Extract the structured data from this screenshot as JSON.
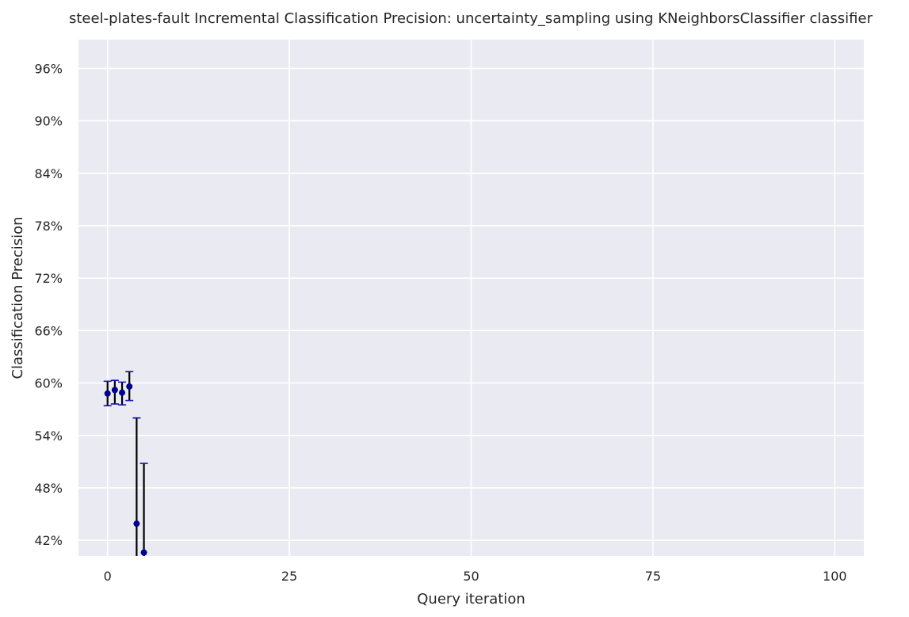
{
  "chart_data": {
    "type": "scatter",
    "title": "steel-plates-fault Incremental Classification Precision: uncertainty_sampling using KNeighborsClassifier classifier",
    "xlabel": "Query iteration",
    "ylabel": "Classification Precision",
    "xlim": [
      -4,
      104
    ],
    "ylim": [
      40.2,
      99.3
    ],
    "x_ticks": [
      0,
      25,
      50,
      75,
      100
    ],
    "x_tick_labels": [
      "0",
      "25",
      "50",
      "75",
      "100"
    ],
    "y_ticks": [
      42,
      48,
      54,
      60,
      66,
      72,
      78,
      84,
      90,
      96
    ],
    "y_tick_labels": [
      "42%",
      "48%",
      "54%",
      "60%",
      "66%",
      "72%",
      "78%",
      "84%",
      "90%",
      "96%"
    ],
    "grid": true,
    "legend": "none",
    "point_color": "#00008b",
    "errorbar_color": "#000000",
    "cap_color": "#1010b0",
    "background_color": "#eaeaf2",
    "series": [
      {
        "x": [
          0,
          1,
          2,
          3,
          4,
          5
        ],
        "y": [
          58.8,
          59.2,
          58.9,
          59.6,
          43.9,
          40.6
        ],
        "err_low": [
          57.4,
          57.6,
          57.5,
          58.0,
          32.5,
          30.5
        ],
        "err_high": [
          60.2,
          60.3,
          60.1,
          61.3,
          56.0,
          50.8
        ]
      }
    ]
  }
}
